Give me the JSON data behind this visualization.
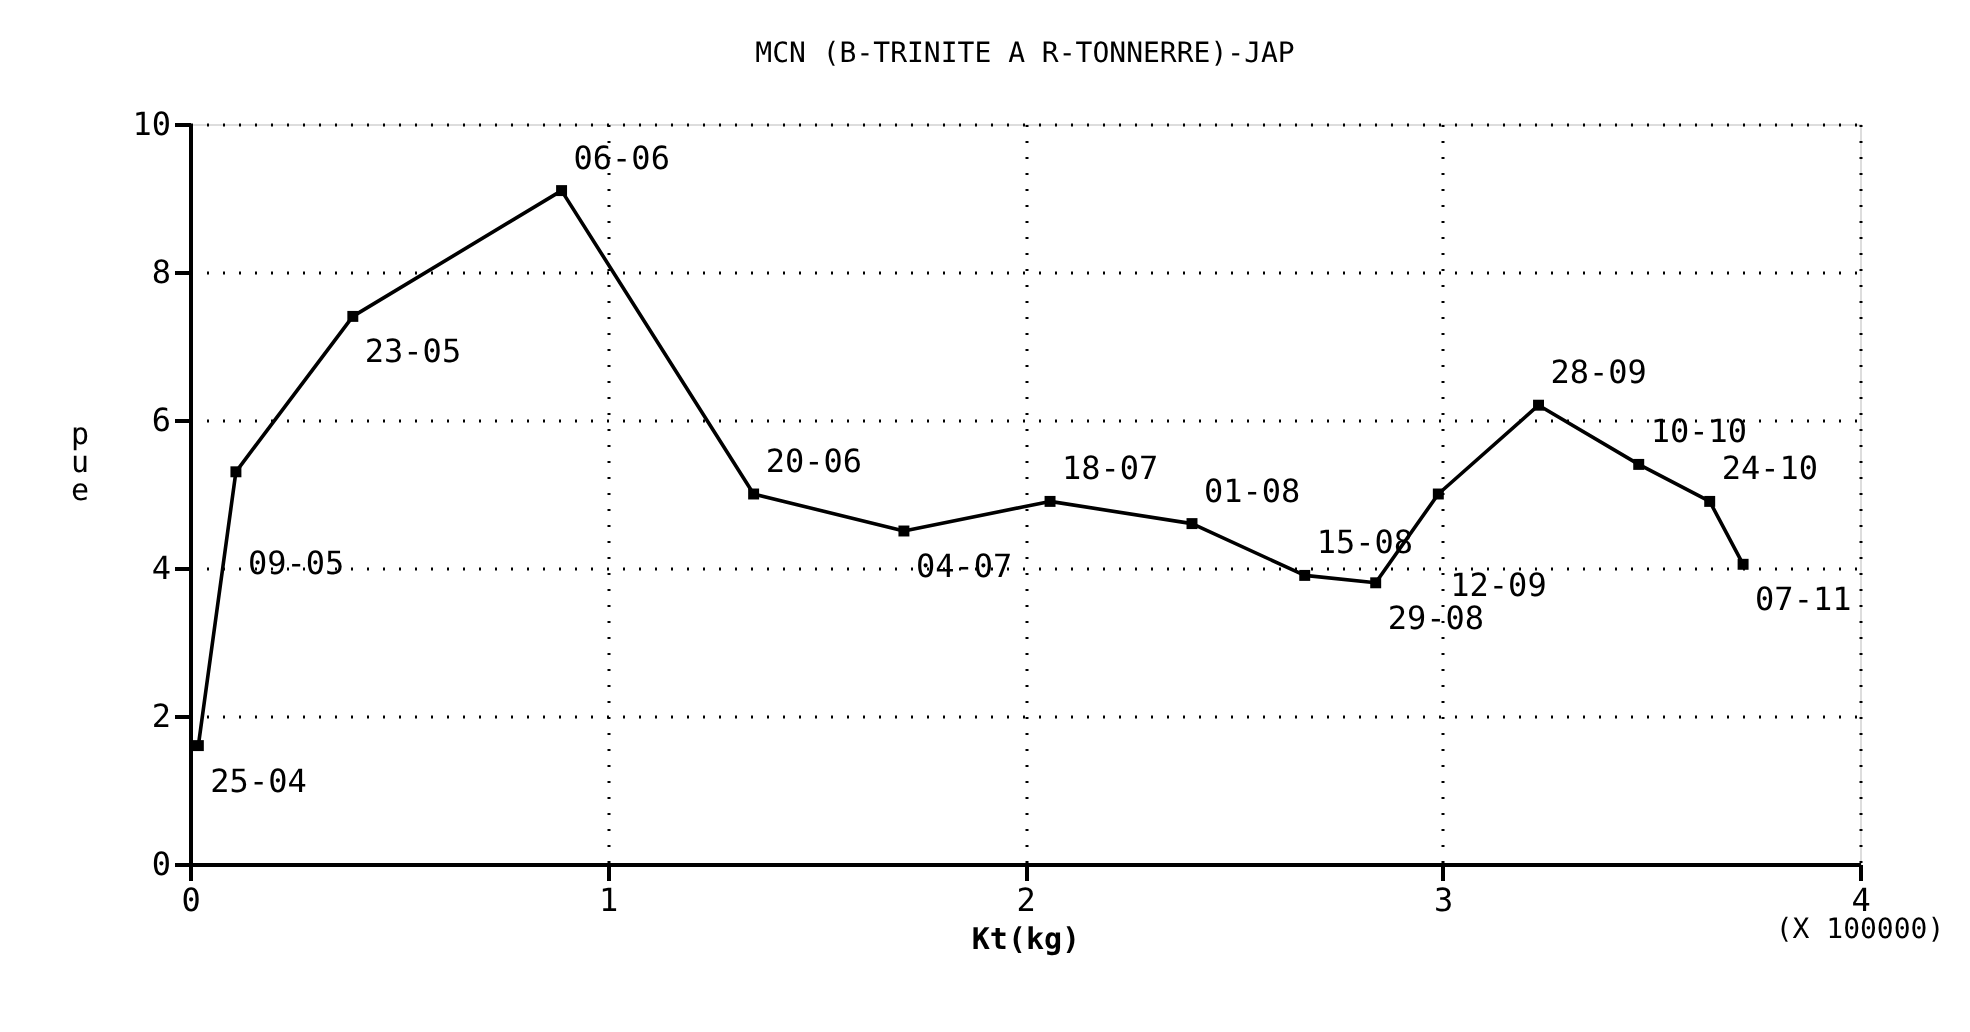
{
  "chart_data": {
    "type": "line",
    "title": "MCN (B-TRINITE A R-TONNERRE)-JAP",
    "xlabel": "Kt(kg)",
    "ylabel": "pue",
    "x": [
      0.02,
      0.11,
      0.39,
      0.89,
      1.35,
      1.71,
      2.06,
      2.4,
      2.67,
      2.84,
      2.99,
      3.23,
      3.47,
      3.64,
      3.72
    ],
    "series": [
      {
        "color": "#000000",
        "values": [
          1.6,
          5.3,
          7.4,
          9.1,
          5.0,
          4.5,
          4.9,
          4.6,
          3.9,
          3.8,
          5.0,
          6.2,
          5.4,
          4.9,
          4.05
        ]
      }
    ],
    "xlim": [
      0,
      4
    ],
    "xticks": [
      0,
      1,
      2,
      3,
      4
    ],
    "ylim": [
      0,
      10
    ],
    "yticks": [
      0,
      2,
      4,
      6,
      8,
      10
    ],
    "grid": true,
    "marker": "square",
    "line_style": "solid",
    "annotations": [
      {
        "text": "25-04",
        "x": 0.02,
        "y": 1.6
      },
      {
        "text": "09-05",
        "x": 0.11,
        "y": 5.3
      },
      {
        "text": "23-05",
        "x": 0.39,
        "y": 7.4
      },
      {
        "text": "06-06",
        "x": 0.89,
        "y": 9.1
      },
      {
        "text": "20-06",
        "x": 1.35,
        "y": 5.0
      },
      {
        "text": "04-07",
        "x": 1.71,
        "y": 4.5
      },
      {
        "text": "18-07",
        "x": 2.06,
        "y": 4.9
      },
      {
        "text": "01-08",
        "x": 2.4,
        "y": 4.6
      },
      {
        "text": "15-08",
        "x": 2.67,
        "y": 3.9
      },
      {
        "text": "29-08",
        "x": 2.84,
        "y": 3.8
      },
      {
        "text": "12-09",
        "x": 2.99,
        "y": 5.0
      },
      {
        "text": "28-09",
        "x": 3.23,
        "y": 6.2
      },
      {
        "text": "10-10",
        "x": 3.47,
        "y": 5.4
      },
      {
        "text": "24-10",
        "x": 3.64,
        "y": 4.9
      },
      {
        "text": "07-11",
        "x": 3.72,
        "y": 4.05
      },
      "(X 100000)"
    ]
  }
}
